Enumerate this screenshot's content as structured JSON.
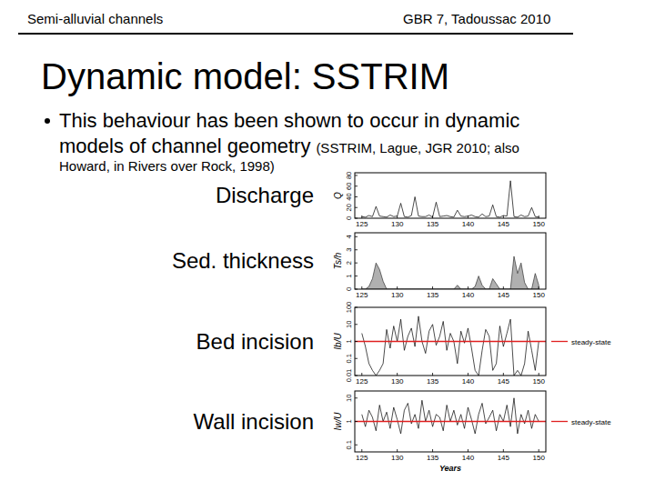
{
  "header": {
    "left": "Semi-alluvial channels",
    "right": "GBR 7, Tadoussac 2010"
  },
  "title": "Dynamic model: SSTRIM",
  "bullet": {
    "text_lines": [
      "This behaviour has been shown to occur in dynamic",
      "models of channel geometry"
    ],
    "citation_lines": [
      "(SSTRIM, Lague, JGR 2010; also",
      "Howard, in Rivers over Rock, 1998)"
    ]
  },
  "panel_labels": [
    "Discharge",
    "Sed. thickness",
    "Bed incision",
    "Wall incision"
  ],
  "chart_data": [
    {
      "type": "line",
      "y_label": "Q",
      "x": [
        125,
        125.5,
        126,
        126.5,
        127,
        127.5,
        128,
        128.5,
        129,
        129.5,
        130,
        130.5,
        131,
        131.5,
        132,
        132.5,
        133,
        133.5,
        134,
        134.5,
        135,
        135.5,
        136,
        136.5,
        137,
        137.5,
        138,
        138.5,
        139,
        139.5,
        140,
        140.5,
        141,
        141.5,
        142,
        142.5,
        143,
        143.5,
        144,
        144.5,
        145,
        145.5,
        146,
        146.5,
        147,
        147.5,
        148,
        148.5,
        149,
        149.5,
        150
      ],
      "series": [
        {
          "color": "#000000",
          "values": [
            3,
            2,
            5,
            3,
            22,
            4,
            3,
            2,
            6,
            3,
            4,
            28,
            3,
            2,
            5,
            40,
            4,
            3,
            3,
            6,
            2,
            30,
            3,
            4,
            5,
            3,
            2,
            15,
            4,
            3,
            4,
            6,
            3,
            2,
            8,
            3,
            4,
            25,
            3,
            2,
            5,
            4,
            70,
            3,
            2,
            6,
            3,
            4,
            20,
            3,
            2
          ]
        }
      ],
      "xlim": [
        124,
        151
      ],
      "xticks": [
        125,
        130,
        135,
        140,
        145,
        150
      ],
      "ylim": [
        0,
        85
      ],
      "yticks": [
        0,
        20,
        40,
        60,
        80
      ]
    },
    {
      "type": "area",
      "y_label": "Ts/h",
      "x": [
        125,
        125.5,
        126,
        126.5,
        127,
        127.5,
        128,
        128.5,
        129,
        129.5,
        130,
        130.5,
        131,
        131.5,
        132,
        132.5,
        133,
        133.5,
        134,
        134.5,
        135,
        135.5,
        136,
        136.5,
        137,
        137.5,
        138,
        138.5,
        139,
        139.5,
        140,
        140.5,
        141,
        141.5,
        142,
        142.5,
        143,
        143.5,
        144,
        144.5,
        145,
        145.5,
        146,
        146.5,
        147,
        147.5,
        148,
        148.5,
        149,
        149.5,
        150
      ],
      "series": [
        {
          "color": "#b0b0b0",
          "values": [
            0,
            0,
            0.2,
            0.8,
            2,
            1.5,
            0.6,
            0,
            0,
            0,
            0,
            0,
            0,
            0,
            0,
            0,
            0,
            0,
            0,
            0,
            0,
            0,
            0,
            0,
            0,
            0,
            0,
            0.3,
            0,
            0,
            0,
            0,
            0.2,
            1,
            0.3,
            0,
            0,
            0.8,
            0.4,
            0,
            0,
            0,
            0,
            2.5,
            1.2,
            2,
            0.5,
            0,
            0,
            1.2,
            0.3
          ]
        }
      ],
      "xlim": [
        124,
        151
      ],
      "xticks": [
        125,
        130,
        135,
        140,
        145,
        150
      ],
      "ylim": [
        0,
        4.3
      ],
      "yticks": [
        0,
        1,
        2,
        3,
        4
      ]
    },
    {
      "type": "line",
      "y_label": "Ib/U",
      "log": "y",
      "legend": "right",
      "x": [
        125,
        125.5,
        126,
        126.5,
        127,
        127.5,
        128,
        128.5,
        129,
        129.5,
        130,
        130.5,
        131,
        131.5,
        132,
        132.5,
        133,
        133.5,
        134,
        134.5,
        135,
        135.5,
        136,
        136.5,
        137,
        137.5,
        138,
        138.5,
        139,
        139.5,
        140,
        140.5,
        141,
        141.5,
        142,
        142.5,
        143,
        143.5,
        144,
        144.5,
        145,
        145.5,
        146,
        146.5,
        147,
        147.5,
        148,
        148.5,
        149,
        149.5,
        150
      ],
      "series": [
        {
          "color": "#000000",
          "values": [
            3,
            0.5,
            0.05,
            0.02,
            0.01,
            0.02,
            0.05,
            5,
            0.4,
            8,
            1,
            20,
            0.3,
            2,
            6,
            0.5,
            30,
            1,
            0.2,
            4,
            10,
            0.6,
            2,
            15,
            0.3,
            3,
            1,
            0.05,
            4,
            0.8,
            6,
            0.4,
            0.02,
            0.01,
            0.3,
            5,
            2,
            0.02,
            0.05,
            8,
            0.5,
            3,
            20,
            0.01,
            0.02,
            0.01,
            0.05,
            4,
            0.3,
            0.02,
            1
          ]
        },
        {
          "name": "steady-state",
          "color": "#e02020",
          "x": [
            124,
            151
          ],
          "values": [
            1,
            1
          ]
        }
      ],
      "xlim": [
        124,
        151
      ],
      "xticks": [
        125,
        130,
        135,
        140,
        145,
        150
      ],
      "ylim": [
        0.01,
        100
      ],
      "yticks": [
        0.01,
        0.1,
        1,
        10,
        100
      ]
    },
    {
      "type": "line",
      "y_label": "Iw/U",
      "x_label": "Years",
      "log": "y",
      "legend": "right",
      "x": [
        125,
        125.5,
        126,
        126.5,
        127,
        127.5,
        128,
        128.5,
        129,
        129.5,
        130,
        130.5,
        131,
        131.5,
        132,
        132.5,
        133,
        133.5,
        134,
        134.5,
        135,
        135.5,
        136,
        136.5,
        137,
        137.5,
        138,
        138.5,
        139,
        139.5,
        140,
        140.5,
        141,
        141.5,
        142,
        142.5,
        143,
        143.5,
        144,
        144.5,
        145,
        145.5,
        146,
        146.5,
        147,
        147.5,
        148,
        148.5,
        149,
        149.5,
        150
      ],
      "series": [
        {
          "color": "#000000",
          "values": [
            2,
            0.6,
            3,
            1.5,
            0.4,
            5,
            1,
            2.5,
            0.5,
            4,
            1.2,
            0.3,
            3,
            6,
            0.8,
            2,
            0.5,
            8,
            1,
            3,
            0.6,
            2,
            1.5,
            0.4,
            5,
            1,
            3,
            0.7,
            2,
            0.5,
            4,
            1.2,
            0.3,
            2,
            6,
            0.8,
            1.5,
            3,
            0.4,
            2,
            1,
            5,
            0.6,
            10,
            0.3,
            2,
            0.8,
            3,
            0.5,
            2,
            1
          ]
        },
        {
          "name": "steady-state",
          "color": "#e02020",
          "x": [
            124,
            151
          ],
          "values": [
            1,
            1
          ]
        }
      ],
      "xlim": [
        124,
        151
      ],
      "xticks": [
        125,
        130,
        135,
        140,
        145,
        150
      ],
      "ylim": [
        0.05,
        20
      ],
      "yticks": [
        0.1,
        1,
        10
      ]
    }
  ]
}
